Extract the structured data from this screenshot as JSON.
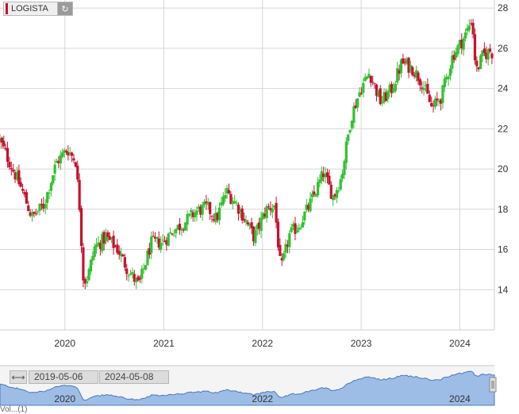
{
  "ticker": {
    "symbol": "LOGISTA",
    "refresh_icon": "refresh-icon"
  },
  "range": {
    "start": "2019-05-06",
    "end": "2024-05-08"
  },
  "navigator": {
    "labels": [
      "2020",
      "2022",
      "2024"
    ]
  },
  "footer_text": "Vol...(1)",
  "colors": {
    "up": "#2fc22f",
    "down": "#c8102e",
    "grid": "#d6d6d6",
    "nav_fill": "#9dbde6",
    "nav_line": "#4a78b8"
  },
  "chart_data": {
    "type": "candlestick",
    "title": "",
    "xlabel": "",
    "ylabel": "",
    "ylim": [
      12,
      28.4
    ],
    "x_ticks": [
      "2020",
      "2021",
      "2022",
      "2023",
      "2024"
    ],
    "y_ticks": [
      14,
      16,
      18,
      20,
      22,
      24,
      26,
      28
    ],
    "grid": true,
    "y_axis_side": "right",
    "approx_close_series": [
      [
        "2019-05-06",
        21.4
      ],
      [
        "2019-06-15",
        20.2
      ],
      [
        "2019-07-25",
        19.0
      ],
      [
        "2019-09-01",
        17.6
      ],
      [
        "2019-10-15",
        18.2
      ],
      [
        "2019-11-30",
        20.3
      ],
      [
        "2020-01-10",
        21.0
      ],
      [
        "2020-02-10",
        20.4
      ],
      [
        "2020-02-25",
        18.0
      ],
      [
        "2020-03-10",
        14.4
      ],
      [
        "2020-03-25",
        14.6
      ],
      [
        "2020-04-20",
        16.1
      ],
      [
        "2020-06-01",
        16.6
      ],
      [
        "2020-07-15",
        16.0
      ],
      [
        "2020-08-20",
        15.0
      ],
      [
        "2020-10-01",
        14.2
      ],
      [
        "2020-11-15",
        16.3
      ],
      [
        "2020-12-31",
        16.4
      ],
      [
        "2021-02-01",
        16.9
      ],
      [
        "2021-03-15",
        17.3
      ],
      [
        "2021-05-01",
        17.9
      ],
      [
        "2021-06-10",
        18.1
      ],
      [
        "2021-07-15",
        17.5
      ],
      [
        "2021-08-20",
        18.9
      ],
      [
        "2021-09-25",
        18.3
      ],
      [
        "2021-11-01",
        17.4
      ],
      [
        "2021-12-01",
        16.6
      ],
      [
        "2022-01-15",
        18.0
      ],
      [
        "2022-02-15",
        18.2
      ],
      [
        "2022-03-10",
        14.9
      ],
      [
        "2022-04-10",
        16.7
      ],
      [
        "2022-05-20",
        17.3
      ],
      [
        "2022-07-01",
        18.4
      ],
      [
        "2022-08-15",
        19.8
      ],
      [
        "2022-09-20",
        18.6
      ],
      [
        "2022-10-20",
        19.6
      ],
      [
        "2022-11-25",
        22.6
      ],
      [
        "2022-12-31",
        24.0
      ],
      [
        "2023-02-01",
        24.8
      ],
      [
        "2023-03-15",
        23.3
      ],
      [
        "2023-04-25",
        24.0
      ],
      [
        "2023-06-01",
        25.3
      ],
      [
        "2023-07-10",
        25.0
      ],
      [
        "2023-08-15",
        24.3
      ],
      [
        "2023-09-20",
        23.0
      ],
      [
        "2023-10-25",
        23.6
      ],
      [
        "2023-12-05",
        25.6
      ],
      [
        "2024-01-20",
        26.6
      ],
      [
        "2024-02-15",
        27.5
      ],
      [
        "2024-03-01",
        24.8
      ],
      [
        "2024-03-25",
        25.6
      ],
      [
        "2024-04-25",
        25.9
      ],
      [
        "2024-05-08",
        25.5
      ]
    ]
  }
}
